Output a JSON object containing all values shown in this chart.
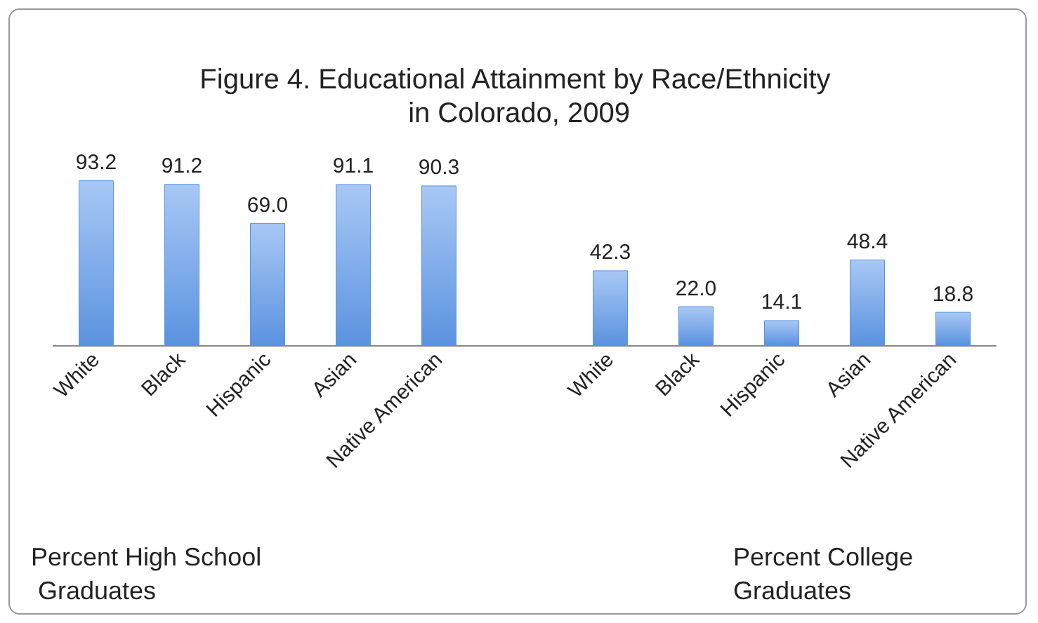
{
  "chart_data": {
    "type": "bar",
    "title": "Figure 4. Educational Attainment by Race/Ethnicity in Colorado, 2009",
    "categories": [
      "White",
      "Black",
      "Hispanic",
      "Asian",
      "Native American",
      null,
      "White",
      "Black",
      "Hispanic",
      "Asian",
      "Native American"
    ],
    "values": [
      93.2,
      91.2,
      69.0,
      91.1,
      90.3,
      null,
      42.3,
      22.0,
      14.1,
      48.4,
      18.8
    ],
    "value_labels": [
      "93.2",
      "91.2",
      "69.0",
      "91.1",
      "90.3",
      null,
      "42.3",
      "22.0",
      "14.1",
      "48.4",
      "18.8"
    ],
    "color": "#5b93e0",
    "annotations": [
      "Percent High School Graduates",
      "Percent College Graduates"
    ]
  }
}
